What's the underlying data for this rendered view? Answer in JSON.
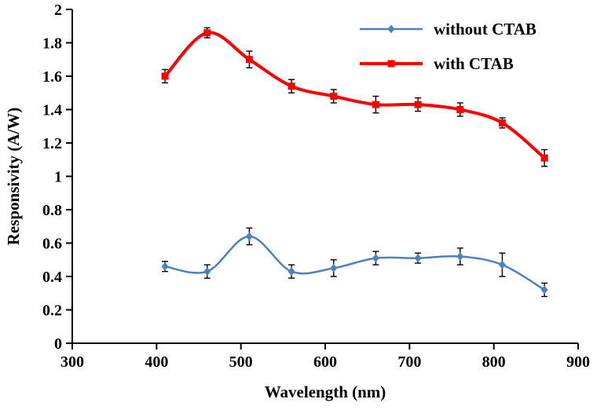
{
  "figure": {
    "background": "#ffffff"
  },
  "chart_data": {
    "type": "line",
    "title": "",
    "xlabel": "Wavelength (nm)",
    "ylabel": "Responsivity (A/W)",
    "xlim": [
      300,
      900
    ],
    "ylim": [
      0,
      2
    ],
    "xticks": [
      300,
      400,
      500,
      600,
      700,
      800,
      900
    ],
    "yticks": [
      0,
      0.2,
      0.4,
      0.6,
      0.8,
      1,
      1.2,
      1.4,
      1.6,
      1.8,
      2
    ],
    "grid": false,
    "legend_position": "top-right",
    "error_bar_color": "#000000",
    "axis_color": "#000000",
    "x": [
      410,
      460,
      510,
      560,
      610,
      660,
      710,
      760,
      810,
      860
    ],
    "series": [
      {
        "name": "without CTAB",
        "color": "#4f81bd",
        "marker": "diamond",
        "marker_size": 4.5,
        "line_width": 2.5,
        "values": [
          0.46,
          0.43,
          0.64,
          0.43,
          0.45,
          0.51,
          0.51,
          0.52,
          0.47,
          0.32
        ],
        "errors": [
          0.03,
          0.04,
          0.05,
          0.04,
          0.05,
          0.04,
          0.03,
          0.05,
          0.07,
          0.04
        ]
      },
      {
        "name": "with CTAB",
        "color": "#ff0000",
        "marker": "square",
        "marker_size": 4.5,
        "line_width": 4,
        "values": [
          1.6,
          1.86,
          1.7,
          1.54,
          1.48,
          1.43,
          1.43,
          1.4,
          1.32,
          1.11
        ],
        "errors": [
          0.04,
          0.03,
          0.05,
          0.04,
          0.04,
          0.05,
          0.04,
          0.04,
          0.03,
          0.05
        ]
      }
    ]
  }
}
